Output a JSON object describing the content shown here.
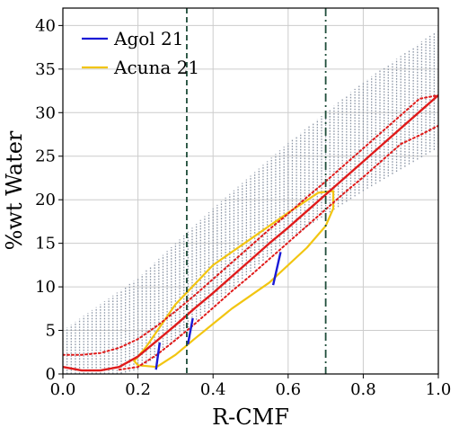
{
  "chart_data": {
    "type": "line",
    "xlabel": "R-CMF",
    "ylabel": "%wt Water",
    "xlim": [
      0,
      1.0
    ],
    "ylim": [
      0,
      42
    ],
    "xticks": [
      0.0,
      0.2,
      0.4,
      0.6,
      0.8,
      1.0
    ],
    "xtick_labels": [
      "0.0",
      "0.2",
      "0.4",
      "0.6",
      "0.8",
      "1.0"
    ],
    "yticks": [
      0,
      5,
      10,
      15,
      20,
      25,
      30,
      35,
      40
    ],
    "ytick_labels": [
      "0",
      "5",
      "10",
      "15",
      "20",
      "25",
      "30",
      "35",
      "40"
    ],
    "grid": true,
    "legend_position": "top-left",
    "legend": [
      {
        "label": "Agol 21",
        "color": "#1a1ad6"
      },
      {
        "label": "Acuna 21",
        "color": "#f2c511"
      }
    ],
    "colors": {
      "envelope": "#8c96a6",
      "median": "#e01b1b",
      "vline": "#1f4d3a",
      "agol": "#1a1ad6",
      "acuna": "#f2c511"
    },
    "vertical_lines": [
      {
        "x": 0.33,
        "style": "dashed"
      },
      {
        "x": 0.7,
        "style": "dashdot"
      }
    ],
    "envelope": {
      "x_start": 0.0,
      "x_end": 1.0,
      "n_lines": 90,
      "lower": [
        [
          0.0,
          0
        ],
        [
          0.15,
          0
        ],
        [
          0.2,
          0.5
        ],
        [
          0.25,
          2
        ],
        [
          0.4,
          8
        ],
        [
          0.6,
          15.5
        ],
        [
          0.8,
          21
        ],
        [
          1.0,
          26
        ]
      ],
      "upper": [
        [
          0.0,
          5
        ],
        [
          0.2,
          11
        ],
        [
          0.4,
          19
        ],
        [
          0.6,
          26.5
        ],
        [
          0.8,
          33.5
        ],
        [
          1.0,
          39.5
        ]
      ]
    },
    "series": [
      {
        "role": "median",
        "style": "solid",
        "x": [
          0.0,
          0.05,
          0.1,
          0.15,
          0.2,
          0.25,
          0.3,
          0.35,
          0.4,
          0.45,
          0.5,
          0.55,
          0.6,
          0.65,
          0.7,
          0.75,
          0.8,
          0.85,
          0.9,
          0.95,
          1.0
        ],
        "y": [
          0.8,
          0.4,
          0.4,
          0.8,
          2.0,
          3.8,
          5.6,
          7.5,
          9.3,
          11.2,
          13.1,
          15.0,
          16.8,
          18.7,
          20.6,
          22.5,
          24.4,
          26.3,
          28.2,
          30.1,
          32.0
        ]
      },
      {
        "role": "upper-bound",
        "style": "dotted",
        "x": [
          0.0,
          0.05,
          0.1,
          0.15,
          0.2,
          0.25,
          0.3,
          0.35,
          0.4,
          0.45,
          0.5,
          0.55,
          0.6,
          0.65,
          0.7,
          0.75,
          0.8,
          0.85,
          0.9,
          0.95,
          1.0
        ],
        "y": [
          2.2,
          2.2,
          2.4,
          3.0,
          4.0,
          5.5,
          7.2,
          9.0,
          10.9,
          12.8,
          14.7,
          16.6,
          18.4,
          20.3,
          22.1,
          24.0,
          25.9,
          27.8,
          29.7,
          31.6,
          32.0
        ]
      },
      {
        "role": "lower-bound",
        "style": "dotted",
        "x": [
          0.15,
          0.2,
          0.25,
          0.3,
          0.35,
          0.4,
          0.45,
          0.5,
          0.55,
          0.6,
          0.65,
          0.7,
          0.75,
          0.8,
          0.85,
          0.9,
          0.95,
          1.0
        ],
        "y": [
          0.5,
          0.8,
          2.2,
          3.9,
          5.7,
          7.6,
          9.5,
          11.3,
          13.2,
          15.1,
          17.0,
          18.9,
          20.8,
          22.6,
          24.5,
          26.4,
          27.4,
          28.5
        ]
      }
    ],
    "acuna_contour": [
      [
        0.2,
        2.0
      ],
      [
        0.22,
        3.0
      ],
      [
        0.3,
        8.0
      ],
      [
        0.4,
        12.5
      ],
      [
        0.5,
        15.5
      ],
      [
        0.6,
        18.5
      ],
      [
        0.68,
        20.8
      ],
      [
        0.72,
        21.0
      ],
      [
        0.72,
        19.0
      ],
      [
        0.7,
        17.0
      ],
      [
        0.65,
        14.5
      ],
      [
        0.55,
        10.5
      ],
      [
        0.45,
        7.5
      ],
      [
        0.35,
        4.0
      ],
      [
        0.3,
        2.2
      ],
      [
        0.25,
        0.8
      ],
      [
        0.2,
        1.0
      ],
      [
        0.19,
        1.5
      ]
    ],
    "agol_segments": [
      {
        "x0": 0.248,
        "y0": 0.5,
        "x1": 0.258,
        "y1": 3.6
      },
      {
        "x0": 0.333,
        "y0": 3.4,
        "x1": 0.346,
        "y1": 6.4
      },
      {
        "x0": 0.56,
        "y0": 10.2,
        "x1": 0.58,
        "y1": 14.0
      }
    ]
  }
}
